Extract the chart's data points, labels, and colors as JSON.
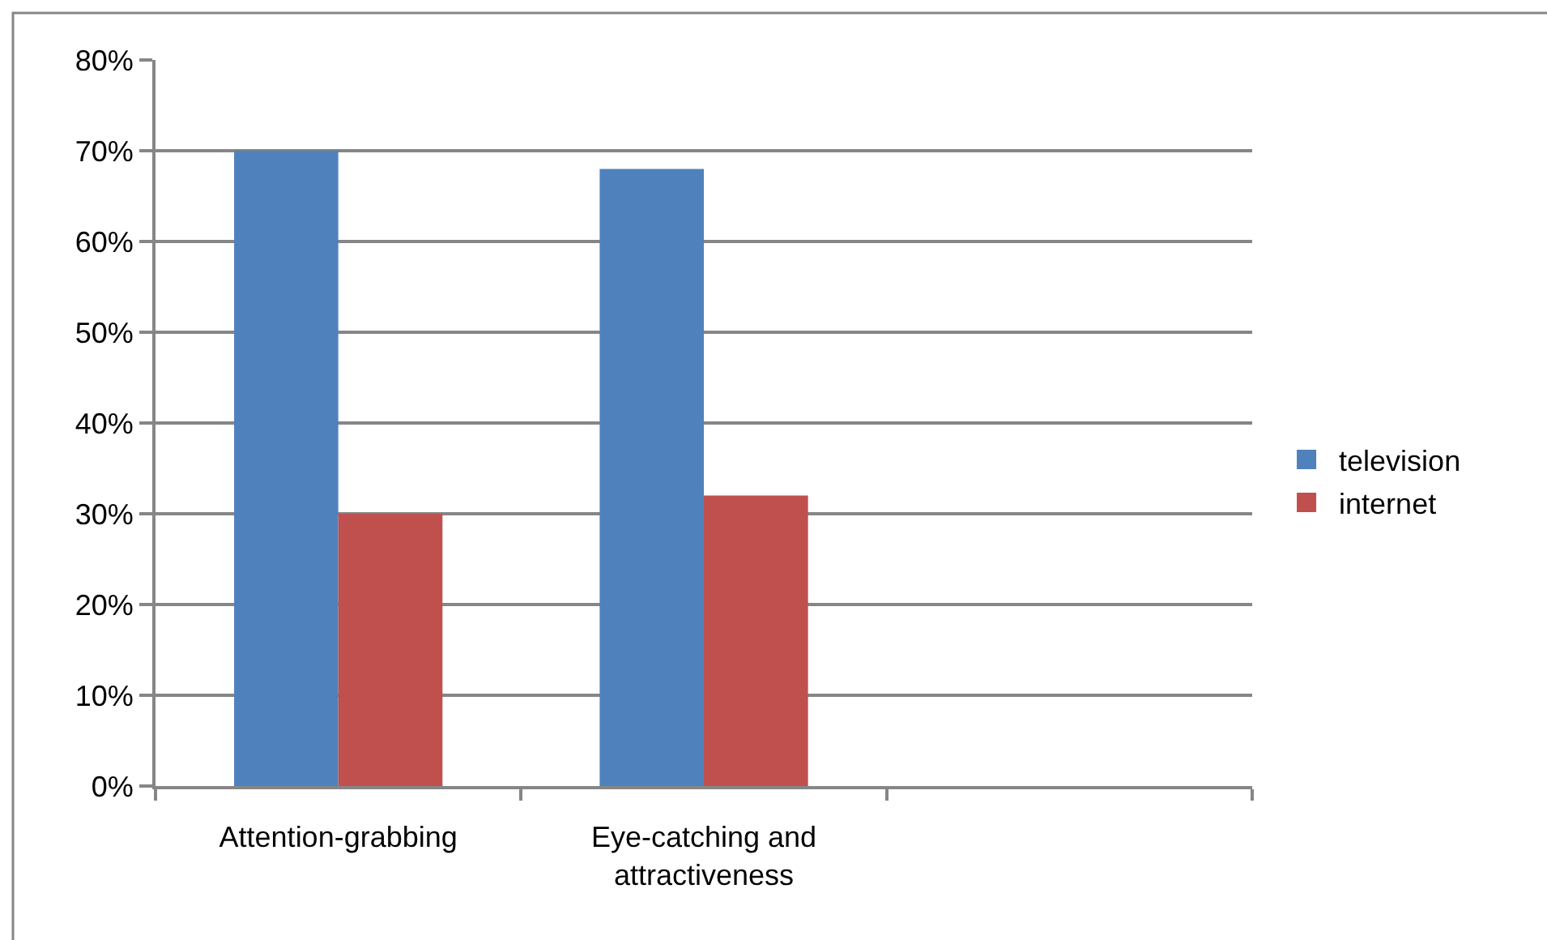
{
  "chart_data": {
    "type": "bar",
    "categories": [
      "Attention-grabbing",
      "Eye-catching and attractiveness",
      null
    ],
    "series": [
      {
        "name": "television",
        "color": "#4f81bd",
        "values": [
          70,
          68,
          null
        ]
      },
      {
        "name": "internet",
        "color": "#c0504d",
        "values": [
          30,
          32,
          null
        ]
      }
    ],
    "ylim": [
      0,
      80
    ],
    "yticks": [
      {
        "value": 0,
        "label": "0%"
      },
      {
        "value": 10,
        "label": "10%"
      },
      {
        "value": 20,
        "label": "20%"
      },
      {
        "value": 30,
        "label": "30%"
      },
      {
        "value": 40,
        "label": "40%"
      },
      {
        "value": 50,
        "label": "50%"
      },
      {
        "value": 60,
        "label": "60%"
      },
      {
        "value": 70,
        "label": "70%"
      },
      {
        "value": 80,
        "label": "80%"
      }
    ],
    "grid": "y",
    "legend": "right"
  }
}
